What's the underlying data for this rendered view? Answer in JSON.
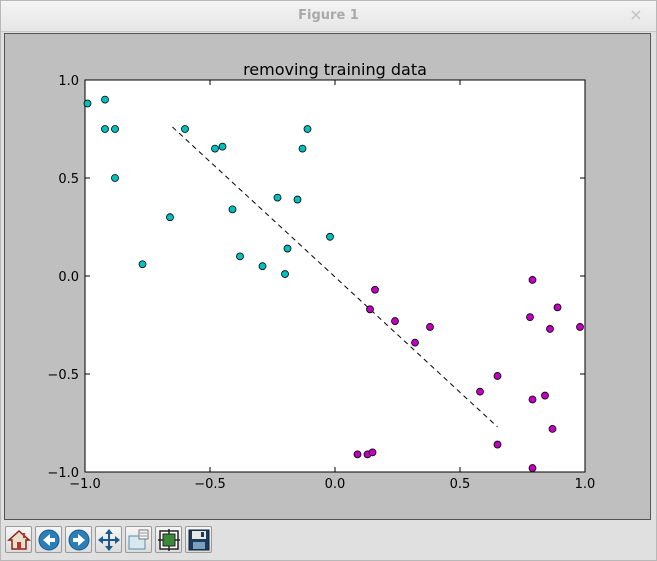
{
  "window": {
    "title": "Figure 1",
    "close_glyph": "×"
  },
  "chart_data": {
    "type": "scatter",
    "title": "removing training data",
    "xlabel": "",
    "ylabel": "",
    "xlim": [
      -1.0,
      1.0
    ],
    "ylim": [
      -1.0,
      1.0
    ],
    "xticks": [
      "−1.0",
      "−0.5",
      "0.0",
      "0.5",
      "1.0"
    ],
    "xtick_values": [
      -1.0,
      -0.5,
      0.0,
      0.5,
      1.0
    ],
    "yticks": [
      "1.0",
      "0.5",
      "0.0",
      "−0.5",
      "−1.0"
    ],
    "ytick_values": [
      1.0,
      0.5,
      0.0,
      -0.5,
      -1.0
    ],
    "grid": false,
    "series": [
      {
        "color": "#00bfbf",
        "points": [
          [
            -0.99,
            0.88
          ],
          [
            -0.92,
            0.9
          ],
          [
            -0.92,
            0.75
          ],
          [
            -0.88,
            0.75
          ],
          [
            -0.88,
            0.5
          ],
          [
            -0.6,
            0.75
          ],
          [
            -0.48,
            0.65
          ],
          [
            -0.45,
            0.66
          ],
          [
            -0.11,
            0.75
          ],
          [
            -0.13,
            0.65
          ],
          [
            -0.66,
            0.3
          ],
          [
            -0.41,
            0.34
          ],
          [
            -0.23,
            0.4
          ],
          [
            -0.15,
            0.39
          ],
          [
            -0.02,
            0.2
          ],
          [
            -0.77,
            0.06
          ],
          [
            -0.38,
            0.1
          ],
          [
            -0.29,
            0.05
          ],
          [
            -0.19,
            0.14
          ],
          [
            -0.2,
            0.01
          ]
        ]
      },
      {
        "color": "#bf00bf",
        "points": [
          [
            0.16,
            -0.07
          ],
          [
            0.14,
            -0.17
          ],
          [
            0.24,
            -0.23
          ],
          [
            0.38,
            -0.26
          ],
          [
            0.32,
            -0.34
          ],
          [
            0.79,
            -0.02
          ],
          [
            0.78,
            -0.21
          ],
          [
            0.89,
            -0.16
          ],
          [
            0.86,
            -0.27
          ],
          [
            0.98,
            -0.26
          ],
          [
            0.65,
            -0.51
          ],
          [
            0.58,
            -0.59
          ],
          [
            0.79,
            -0.63
          ],
          [
            0.84,
            -0.61
          ],
          [
            0.87,
            -0.78
          ],
          [
            0.65,
            -0.86
          ],
          [
            0.79,
            -0.98
          ],
          [
            0.09,
            -0.91
          ],
          [
            0.13,
            -0.91
          ],
          [
            0.15,
            -0.9
          ]
        ]
      }
    ],
    "decision_line": {
      "style": "dashed",
      "color": "#000000",
      "x": [
        -0.65,
        0.65
      ],
      "y": [
        0.76,
        -0.77
      ]
    }
  },
  "toolbar": {
    "buttons": [
      {
        "name": "home-button",
        "icon": "home-icon"
      },
      {
        "name": "back-button",
        "icon": "back-arrow-icon"
      },
      {
        "name": "forward-button",
        "icon": "forward-arrow-icon"
      },
      {
        "name": "pan-button",
        "icon": "pan-move-icon"
      },
      {
        "name": "zoom-button",
        "icon": "zoom-rect-icon"
      },
      {
        "name": "subplots-button",
        "icon": "configure-subplots-icon"
      },
      {
        "name": "save-button",
        "icon": "save-floppy-icon"
      }
    ]
  }
}
